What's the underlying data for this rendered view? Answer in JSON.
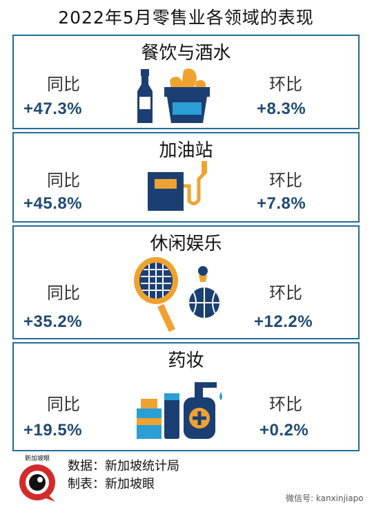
{
  "title": "2022年5月零售业各领域的表现",
  "cards": [
    {
      "name": "餐饮与酒水",
      "yoy_label": "同比",
      "yoy": "+47.3%",
      "mom_label": "环比",
      "mom": "+8.3%"
    },
    {
      "name": "加油站",
      "yoy_label": "同比",
      "yoy": "+45.8%",
      "mom_label": "环比",
      "mom": "+7.8%"
    },
    {
      "name": "休闲娱乐",
      "yoy_label": "同比",
      "yoy": "+35.2%",
      "mom_label": "环比",
      "mom": "+12.2%"
    },
    {
      "name": "药妆",
      "yoy_label": "同比",
      "yoy": "+19.5%",
      "mom_label": "环比",
      "mom": "+0.2%"
    }
  ],
  "footer": {
    "source": "数据：新加坡统计局",
    "maker": "制表：新加坡眼",
    "logo_text": "新加坡眼",
    "wechat": "微信号: kanxinjiapo"
  },
  "colors": {
    "border": "#1f6e9a",
    "value": "#1f4a75",
    "navy": "#1c3f73",
    "orange": "#f0a230",
    "teal": "#2a9fd6"
  }
}
